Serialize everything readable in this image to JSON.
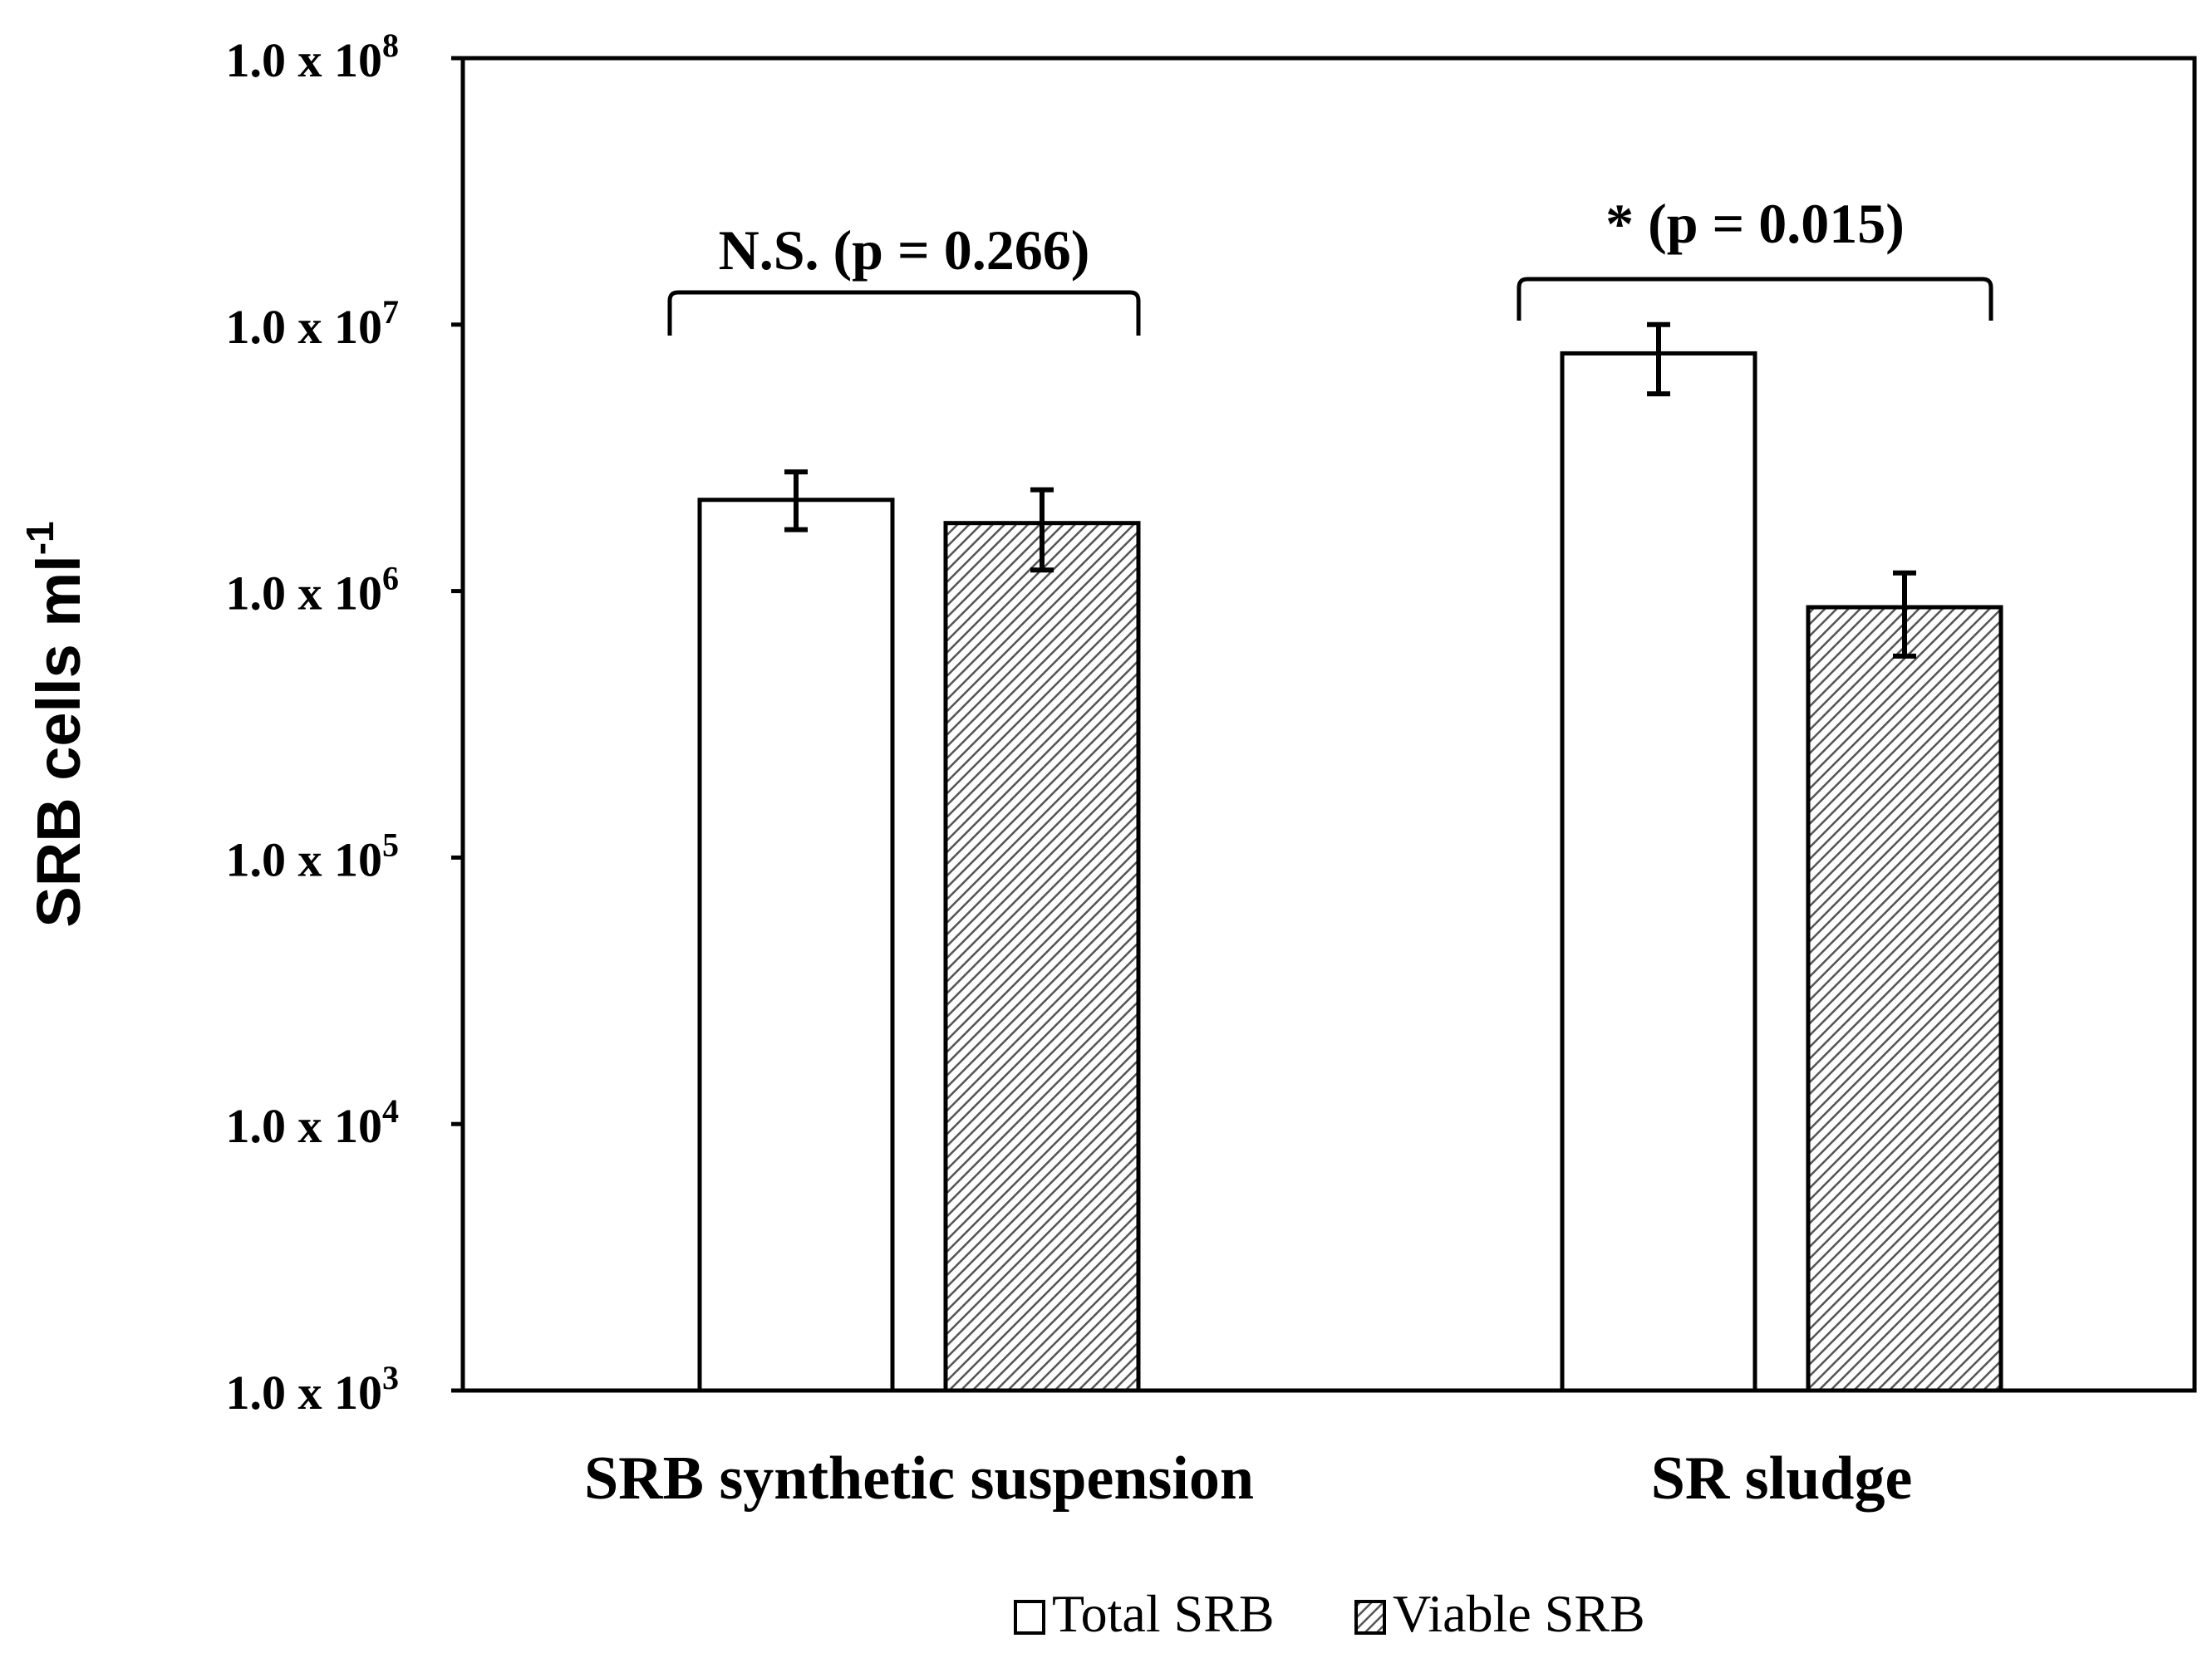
{
  "chart_data": {
    "type": "bar",
    "title": "",
    "ylabel": "SRB cells ml",
    "ylabel_superscript": "-1",
    "yscale": "log",
    "ylim": [
      1000,
      100000000
    ],
    "y_ticks": [
      {
        "value": 1000,
        "mantissa": "1.0 x 10",
        "exponent": "3"
      },
      {
        "value": 10000,
        "mantissa": "1.0 x 10",
        "exponent": "4"
      },
      {
        "value": 100000,
        "mantissa": "1.0 x 10",
        "exponent": "5"
      },
      {
        "value": 1000000,
        "mantissa": "1.0 x 10",
        "exponent": "6"
      },
      {
        "value": 10000000,
        "mantissa": "1.0 x 10",
        "exponent": "7"
      },
      {
        "value": 100000000,
        "mantissa": "1.0 x 10",
        "exponent": "8"
      }
    ],
    "categories": [
      "SRB synthetic suspension",
      "SR sludge"
    ],
    "series": [
      {
        "name": "Total SRB",
        "pattern": "open",
        "values": [
          2200000,
          7800000
        ],
        "error_low": [
          1700000,
          5500000
        ],
        "error_high": [
          2800000,
          10000000
        ]
      },
      {
        "name": "Viable SRB",
        "pattern": "hatched",
        "values": [
          1800000,
          870000
        ],
        "error_low": [
          1200000,
          570000
        ],
        "error_high": [
          2400000,
          1170000
        ]
      }
    ],
    "significance": [
      {
        "category_index": 0,
        "label": "N.S. (p = 0.266)"
      },
      {
        "category_index": 1,
        "label": "*  (p = 0.015)"
      }
    ],
    "legend_position": "bottom-center",
    "grid": false,
    "colors": {
      "axis": "#000000",
      "open_fill": "#ffffff",
      "hatch": "#555555"
    }
  }
}
